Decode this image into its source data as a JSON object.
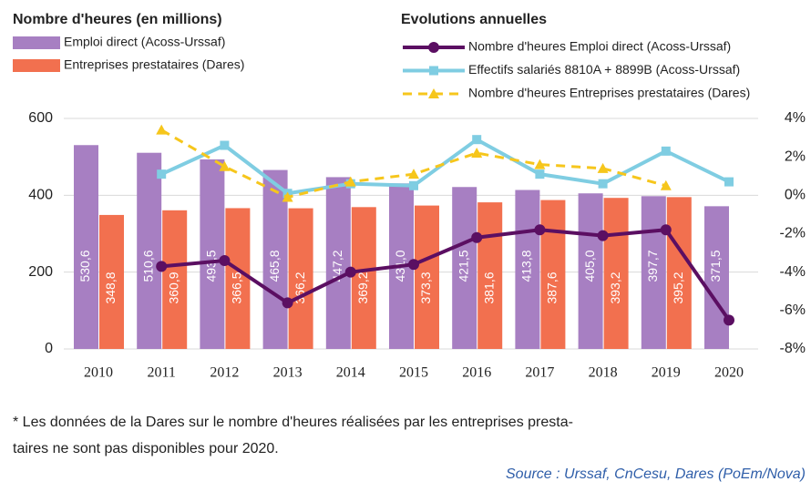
{
  "chart_data": {
    "type": "bar",
    "title": "Nombre d'heures (en millions)",
    "title2": "Evolutions annuelles",
    "categories": [
      "2010",
      "2011",
      "2012",
      "2013",
      "2014",
      "2015",
      "2016",
      "2017",
      "2018",
      "2019",
      "2020"
    ],
    "series": [
      {
        "name": "Emploi direct (Acoss-Urssaf)",
        "kind": "bar",
        "color": "#a77fc2",
        "values": [
          530.6,
          510.6,
          493.5,
          465.8,
          447.2,
          431.0,
          421.5,
          413.8,
          405.0,
          397.7,
          371.5
        ],
        "value_labels": [
          "530,6",
          "510,6",
          "493,5",
          "465,8",
          "447,2",
          "431,0",
          "421,5",
          "413,8",
          "405,0",
          "397,7",
          "371,5"
        ]
      },
      {
        "name": "Entreprises prestataires (Dares)",
        "kind": "bar",
        "color": "#f2704f",
        "values": [
          348.8,
          360.9,
          366.5,
          366.2,
          369.2,
          373.3,
          381.6,
          387.6,
          393.2,
          395.2,
          null
        ],
        "value_labels": [
          "348,8",
          "360,9",
          "366,5",
          "366,2",
          "369,2",
          "373,3",
          "381,6",
          "387,6",
          "393,2",
          "395,2",
          null
        ]
      },
      {
        "name": "Nombre d'heures Emploi direct (Acoss-Urssaf)",
        "kind": "line",
        "axis": "y2",
        "color": "#5b0f62",
        "marker": "circle",
        "values": [
          null,
          -3.7,
          -3.4,
          -5.6,
          -4.0,
          -3.6,
          -2.2,
          -1.8,
          -2.1,
          -1.8,
          -6.5
        ]
      },
      {
        "name": "Effectifs salariés 8810A + 8899B (Acoss-Urssaf)",
        "kind": "line",
        "axis": "y2",
        "color": "#7fcde2",
        "marker": "square",
        "values": [
          null,
          1.1,
          2.6,
          0.1,
          0.6,
          0.5,
          2.9,
          1.1,
          0.6,
          2.3,
          0.7
        ]
      },
      {
        "name": "Nombre d'heures Entreprises prestataires (Dares)",
        "kind": "line",
        "axis": "y2",
        "color": "#f6c61c",
        "marker": "triangle",
        "dashed": true,
        "values": [
          null,
          3.4,
          1.5,
          -0.1,
          0.7,
          1.1,
          2.2,
          1.6,
          1.4,
          0.5,
          null
        ]
      }
    ],
    "ylim": [
      0,
      600
    ],
    "yticks": [
      0,
      200,
      400,
      600
    ],
    "y2lim": [
      -8,
      4
    ],
    "y2ticks": [
      {
        "value": 4,
        "label": "4%"
      },
      {
        "value": 2,
        "label": "2%"
      },
      {
        "value": 0,
        "label": "0%"
      },
      {
        "value": -2,
        "label": "-2%"
      },
      {
        "value": -4,
        "label": "-4%"
      },
      {
        "value": -6,
        "label": "-6%"
      },
      {
        "value": -8,
        "label": "-8%"
      }
    ],
    "grid": true,
    "footnote": [
      "* Les données de la Dares sur le nombre d'heures réalisées par les entreprises presta-",
      "taires ne sont pas disponibles pour 2020."
    ],
    "source": "Source : Urssaf, CnCesu, Dares (PoEm/Nova)"
  }
}
